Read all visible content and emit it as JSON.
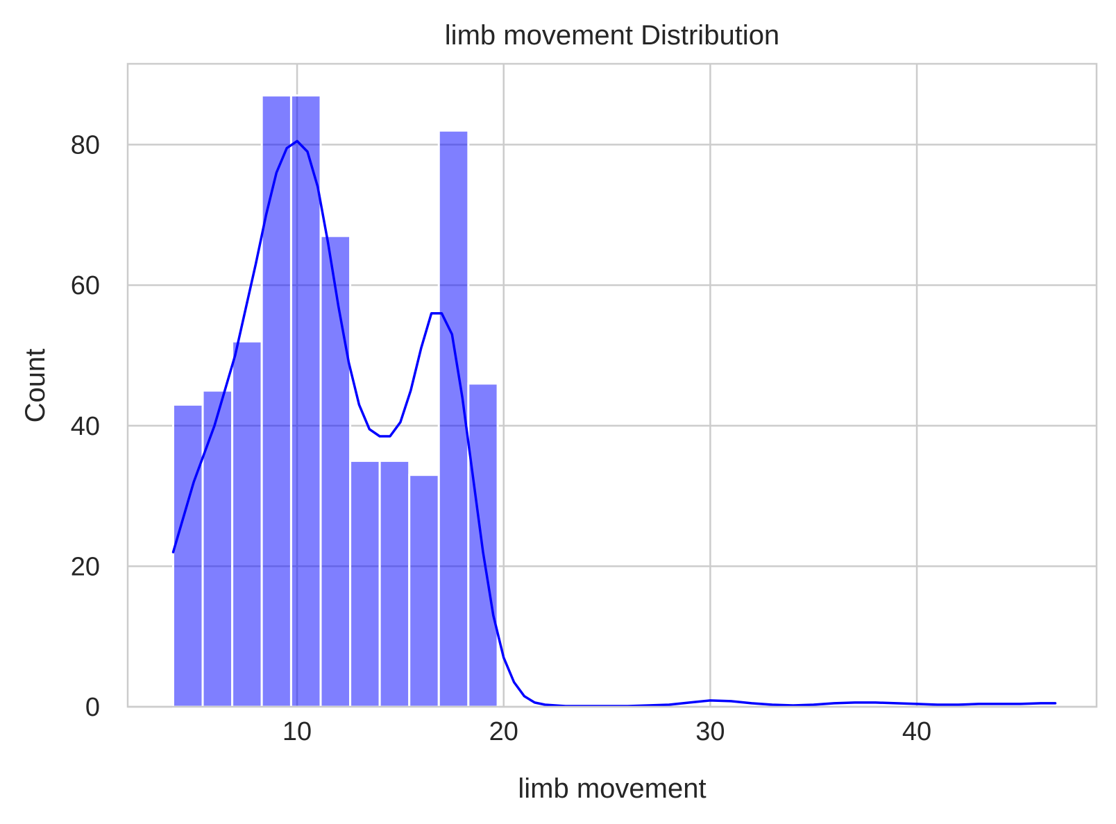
{
  "chart_data": {
    "type": "bar",
    "title": "limb movement Distribution",
    "xlabel": "limb movement",
    "ylabel": "Count",
    "xlim": [
      1.8,
      48.7
    ],
    "ylim": [
      0,
      91.5
    ],
    "xticks": [
      10,
      20,
      30,
      40
    ],
    "yticks": [
      0,
      20,
      40,
      60,
      80
    ],
    "grid": true,
    "legend": "none",
    "colors": {
      "bar": "#0000ff",
      "bar_opacity": 0.5,
      "kde": "#0000ff",
      "grid": "#cccccc",
      "spine": "#cccccc"
    },
    "bins": [
      {
        "x0": 4.0,
        "x1": 5.43,
        "count": 43
      },
      {
        "x0": 5.43,
        "x1": 6.86,
        "count": 45
      },
      {
        "x0": 6.86,
        "x1": 8.29,
        "count": 52
      },
      {
        "x0": 8.29,
        "x1": 9.71,
        "count": 87
      },
      {
        "x0": 9.71,
        "x1": 11.14,
        "count": 87
      },
      {
        "x0": 11.14,
        "x1": 12.57,
        "count": 67
      },
      {
        "x0": 12.57,
        "x1": 14.0,
        "count": 35
      },
      {
        "x0": 14.0,
        "x1": 15.43,
        "count": 35
      },
      {
        "x0": 15.43,
        "x1": 16.86,
        "count": 33
      },
      {
        "x0": 16.86,
        "x1": 18.29,
        "count": 82
      },
      {
        "x0": 18.29,
        "x1": 19.71,
        "count": 46
      },
      {
        "x0": 28.0,
        "x1": 29.43,
        "count": 0
      },
      {
        "x0": 35.0,
        "x1": 36.43,
        "count": 0
      },
      {
        "x0": 37.5,
        "x1": 38.93,
        "count": 0
      },
      {
        "x0": 42.5,
        "x1": 43.93,
        "count": 0
      },
      {
        "x0": 45.5,
        "x1": 46.93,
        "count": 0
      }
    ],
    "kde": {
      "x": [
        4.0,
        5.0,
        6.0,
        7.0,
        8.0,
        8.5,
        9.0,
        9.5,
        10.0,
        10.5,
        11.0,
        11.5,
        12.0,
        12.5,
        13.0,
        13.5,
        14.0,
        14.5,
        15.0,
        15.5,
        16.0,
        16.5,
        17.0,
        17.5,
        18.0,
        18.5,
        19.0,
        19.5,
        20.0,
        20.5,
        21.0,
        21.5,
        22.0,
        22.5,
        23.0,
        24.0,
        26.0,
        28.0,
        29.0,
        30.0,
        31.0,
        32.0,
        33.0,
        34.0,
        35.0,
        36.0,
        37.0,
        38.0,
        39.0,
        40.0,
        41.0,
        42.0,
        43.0,
        44.0,
        45.0,
        46.0,
        46.7
      ],
      "y": [
        22,
        32,
        40,
        50,
        63,
        70,
        76,
        79.5,
        80.5,
        79,
        74,
        66,
        57,
        49,
        43,
        39.5,
        38.5,
        38.5,
        40.5,
        45,
        51,
        56,
        56,
        53,
        44,
        33,
        22,
        13,
        7,
        3.5,
        1.5,
        0.6,
        0.3,
        0.2,
        0.1,
        0.1,
        0.1,
        0.3,
        0.6,
        0.9,
        0.8,
        0.5,
        0.3,
        0.2,
        0.3,
        0.5,
        0.6,
        0.6,
        0.5,
        0.4,
        0.3,
        0.3,
        0.4,
        0.4,
        0.4,
        0.5,
        0.5
      ]
    }
  }
}
